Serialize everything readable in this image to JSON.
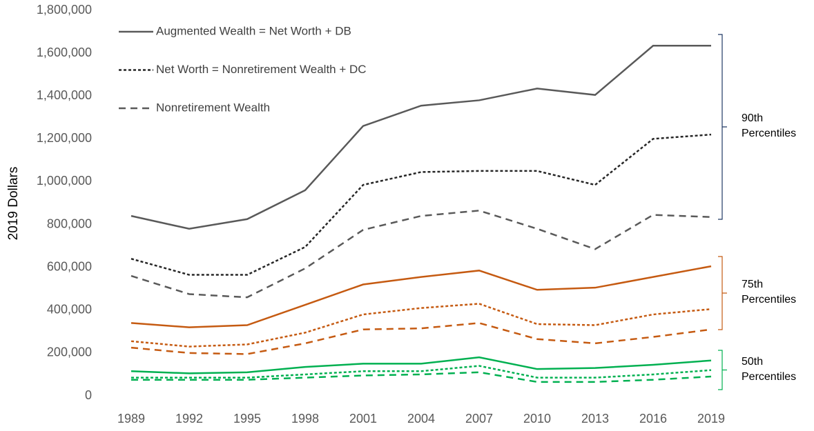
{
  "chart_data": {
    "type": "line",
    "y_label": "2019 Dollars",
    "categories": [
      "1989",
      "1992",
      "1995",
      "1998",
      "2001",
      "2004",
      "2007",
      "2010",
      "2013",
      "2016",
      "2019"
    ],
    "ylim": [
      0,
      1800000
    ],
    "yticks": [
      0,
      {
        "value": 200000,
        "label": "200,000"
      },
      {
        "value": 400000,
        "label": "400,000"
      },
      {
        "value": 600000,
        "label": "600,000"
      },
      {
        "value": 800000,
        "label": "800,000"
      },
      {
        "value": 1000000,
        "label": "1,000,000"
      },
      {
        "value": 1200000,
        "label": "1,200,000"
      },
      {
        "value": 1400000,
        "label": "1,400,000"
      },
      {
        "value": 1600000,
        "label": "1,600,000"
      },
      {
        "value": 1800000,
        "label": "1,800,000"
      }
    ],
    "grid": false,
    "legend": "top-left",
    "series": [
      {
        "name": "Augmented Wealth = Net Worth + DB",
        "color": "#595959",
        "dash": "solid",
        "values": [
          840000,
          780000,
          825000,
          960000,
          1260000,
          1355000,
          1380000,
          1435000,
          1405000,
          1635000,
          1635000
        ]
      },
      {
        "name": "Net Worth = Nonretirement  Wealth + DC",
        "color": "#262626",
        "dash": "dotted",
        "values": [
          640000,
          565000,
          565000,
          695000,
          985000,
          1045000,
          1050000,
          1050000,
          985000,
          1200000,
          1220000
        ]
      },
      {
        "name": "Nonretirement Wealth",
        "color": "#595959",
        "dash": "dashed",
        "values": [
          560000,
          475000,
          460000,
          595000,
          775000,
          840000,
          865000,
          780000,
          685000,
          845000,
          835000
        ]
      },
      {
        "color": "#c55a11",
        "dash": "solid",
        "values": [
          340000,
          320000,
          330000,
          425000,
          520000,
          555000,
          585000,
          495000,
          505000,
          555000,
          605000
        ]
      },
      {
        "color": "#c55a11",
        "dash": "dotted",
        "values": [
          255000,
          230000,
          240000,
          295000,
          380000,
          410000,
          430000,
          335000,
          330000,
          380000,
          405000
        ]
      },
      {
        "color": "#c55a11",
        "dash": "dashed",
        "values": [
          225000,
          200000,
          195000,
          245000,
          310000,
          315000,
          340000,
          265000,
          245000,
          275000,
          310000
        ]
      },
      {
        "color": "#00b050",
        "dash": "solid",
        "values": [
          115000,
          105000,
          110000,
          135000,
          150000,
          150000,
          180000,
          125000,
          130000,
          145000,
          165000
        ]
      },
      {
        "color": "#00b050",
        "dash": "dotted",
        "values": [
          85000,
          85000,
          85000,
          100000,
          115000,
          115000,
          140000,
          85000,
          85000,
          100000,
          120000
        ]
      },
      {
        "color": "#00b050",
        "dash": "dashed",
        "values": [
          75000,
          75000,
          75000,
          85000,
          95000,
          100000,
          110000,
          65000,
          65000,
          75000,
          90000
        ]
      }
    ],
    "annotations": [
      {
        "text": "90th Percentiles",
        "color": "#1f3864"
      },
      {
        "text": "75th Percentiles",
        "color": "#c55a11"
      },
      {
        "text": "50th Percentiles",
        "color": "#00b050"
      }
    ]
  }
}
